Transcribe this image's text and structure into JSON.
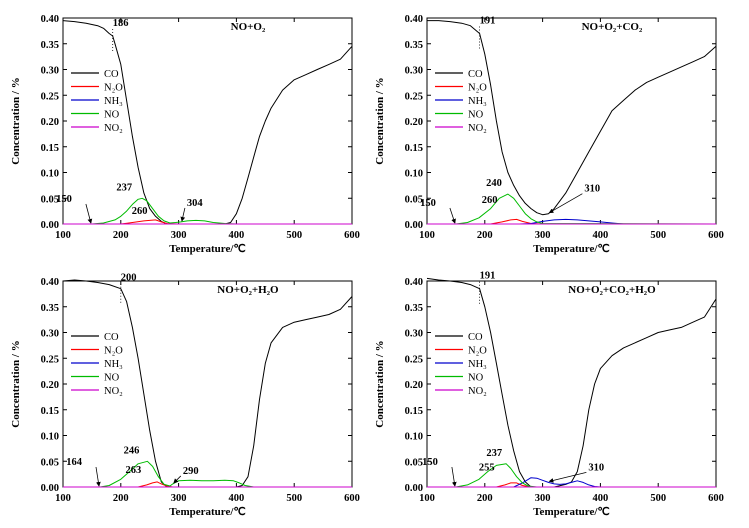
{
  "chart_data": [
    {
      "type": "line",
      "title": "NO+O₂",
      "xlabel": "Temperature/℃",
      "ylabel": "Concentration / %",
      "xlim": [
        100,
        600
      ],
      "ylim": [
        0,
        0.4
      ],
      "xticks": [
        "100",
        "200",
        "300",
        "400",
        "500",
        "600"
      ],
      "yticks": [
        "0.00",
        "0.05",
        "0.10",
        "0.15",
        "0.20",
        "0.25",
        "0.30",
        "0.35",
        "0.40"
      ],
      "legend_position": "left",
      "colors": {
        "CO": "#000000",
        "N2O": "#ff0000",
        "NH3": "#0000cc",
        "NO": "#00bb00",
        "NO2": "#cc00cc"
      },
      "series": [
        {
          "name": "CO",
          "x": [
            100,
            120,
            140,
            160,
            170,
            180,
            186,
            190,
            200,
            210,
            220,
            230,
            240,
            250,
            260,
            270,
            280,
            290,
            300,
            320,
            340,
            360,
            380,
            390,
            400,
            410,
            420,
            430,
            440,
            450,
            460,
            480,
            500,
            520,
            540,
            560,
            580,
            600
          ],
          "y": [
            0.395,
            0.393,
            0.39,
            0.385,
            0.38,
            0.37,
            0.365,
            0.35,
            0.31,
            0.24,
            0.17,
            0.11,
            0.06,
            0.03,
            0.015,
            0.005,
            0.0,
            0.0,
            0.0,
            0.0,
            0.0,
            0.0,
            0.0,
            0.003,
            0.02,
            0.05,
            0.09,
            0.13,
            0.17,
            0.2,
            0.225,
            0.26,
            0.28,
            0.29,
            0.3,
            0.31,
            0.32,
            0.345
          ]
        },
        {
          "name": "N₂O",
          "x": [
            100,
            200,
            220,
            240,
            260,
            270,
            280,
            300,
            600
          ],
          "y": [
            0,
            0,
            0.003,
            0.006,
            0.008,
            0.004,
            0.001,
            0,
            0
          ]
        },
        {
          "name": "NH₃",
          "x": [
            100,
            600
          ],
          "y": [
            0,
            0
          ]
        },
        {
          "name": "NO",
          "x": [
            100,
            150,
            170,
            190,
            200,
            210,
            220,
            230,
            237,
            245,
            255,
            265,
            275,
            285,
            295,
            304,
            315,
            330,
            345,
            360,
            380,
            400,
            600
          ],
          "y": [
            0,
            0,
            0.002,
            0.008,
            0.015,
            0.025,
            0.038,
            0.048,
            0.05,
            0.045,
            0.03,
            0.015,
            0.006,
            0.002,
            0.003,
            0.004,
            0.006,
            0.007,
            0.006,
            0.003,
            0.001,
            0,
            0
          ]
        },
        {
          "name": "NO₂",
          "x": [
            100,
            600
          ],
          "y": [
            0,
            0
          ]
        }
      ],
      "annotations": [
        {
          "text": "186",
          "x": 186,
          "y": 0.365
        },
        {
          "text": "150",
          "x": 150,
          "y": 0.0
        },
        {
          "text": "237",
          "x": 237,
          "y": 0.05
        },
        {
          "text": "260",
          "x": 260,
          "y": 0.008
        },
        {
          "text": "304",
          "x": 304,
          "y": 0.004
        }
      ]
    },
    {
      "type": "line",
      "title": "NO+O₂+CO₂",
      "xlabel": "Temperature/℃",
      "ylabel": "Concentration / %",
      "xlim": [
        100,
        600
      ],
      "ylim": [
        0,
        0.4
      ],
      "xticks": [
        "100",
        "200",
        "300",
        "400",
        "500",
        "600"
      ],
      "yticks": [
        "0.00",
        "0.05",
        "0.10",
        "0.15",
        "0.20",
        "0.25",
        "0.30",
        "0.35",
        "0.40"
      ],
      "legend_position": "left",
      "colors": {
        "CO": "#000000",
        "N2O": "#ff0000",
        "NH3": "#0000cc",
        "NO": "#00bb00",
        "NO2": "#cc00cc"
      },
      "series": [
        {
          "name": "CO",
          "x": [
            100,
            120,
            140,
            160,
            175,
            191,
            200,
            210,
            220,
            230,
            240,
            250,
            260,
            270,
            280,
            290,
            300,
            310,
            320,
            340,
            360,
            380,
            400,
            420,
            440,
            460,
            480,
            500,
            520,
            540,
            560,
            580,
            600
          ],
          "y": [
            0.395,
            0.395,
            0.393,
            0.39,
            0.385,
            0.37,
            0.33,
            0.27,
            0.2,
            0.14,
            0.1,
            0.075,
            0.055,
            0.04,
            0.03,
            0.022,
            0.018,
            0.02,
            0.03,
            0.06,
            0.1,
            0.14,
            0.18,
            0.22,
            0.24,
            0.26,
            0.275,
            0.285,
            0.295,
            0.305,
            0.315,
            0.325,
            0.345
          ]
        },
        {
          "name": "N₂O",
          "x": [
            100,
            210,
            230,
            245,
            255,
            265,
            280,
            300,
            600
          ],
          "y": [
            0,
            0,
            0.004,
            0.008,
            0.009,
            0.005,
            0.001,
            0,
            0
          ]
        },
        {
          "name": "NH₃",
          "x": [
            100,
            260,
            280,
            300,
            320,
            340,
            360,
            380,
            400,
            420,
            440,
            600
          ],
          "y": [
            0,
            0,
            0.001,
            0.005,
            0.008,
            0.009,
            0.008,
            0.006,
            0.004,
            0.002,
            0.0,
            0
          ]
        },
        {
          "name": "NO",
          "x": [
            100,
            150,
            170,
            190,
            210,
            225,
            240,
            250,
            260,
            270,
            280,
            290,
            300,
            600
          ],
          "y": [
            0,
            0,
            0.003,
            0.012,
            0.03,
            0.05,
            0.058,
            0.05,
            0.035,
            0.02,
            0.01,
            0.004,
            0.001,
            0
          ]
        },
        {
          "name": "NO₂",
          "x": [
            100,
            600
          ],
          "y": [
            0,
            0
          ]
        }
      ],
      "annotations": [
        {
          "text": "191",
          "x": 191,
          "y": 0.37
        },
        {
          "text": "150",
          "x": 150,
          "y": 0.0
        },
        {
          "text": "260",
          "x": 260,
          "y": 0.035
        },
        {
          "text": "240",
          "x": 240,
          "y": 0.058
        },
        {
          "text": "310",
          "x": 310,
          "y": 0.02
        }
      ]
    },
    {
      "type": "line",
      "title": "NO+O₂+H₂O",
      "xlabel": "Temperature/℃",
      "ylabel": "Concentration / %",
      "xlim": [
        100,
        600
      ],
      "ylim": [
        0,
        0.4
      ],
      "xticks": [
        "100",
        "200",
        "300",
        "400",
        "500",
        "600"
      ],
      "yticks": [
        "0.00",
        "0.05",
        "0.10",
        "0.15",
        "0.20",
        "0.25",
        "0.30",
        "0.35",
        "0.40"
      ],
      "legend_position": "left",
      "colors": {
        "CO": "#000000",
        "N2O": "#ff0000",
        "NH3": "#0000cc",
        "NO": "#00bb00",
        "NO2": "#cc00cc"
      },
      "series": [
        {
          "name": "CO",
          "x": [
            100,
            120,
            140,
            160,
            180,
            200,
            210,
            220,
            230,
            240,
            250,
            260,
            270,
            280,
            290,
            300,
            320,
            340,
            360,
            380,
            400,
            410,
            420,
            430,
            440,
            450,
            460,
            480,
            500,
            520,
            540,
            560,
            580,
            600
          ],
          "y": [
            0.4,
            0.402,
            0.4,
            0.397,
            0.393,
            0.385,
            0.36,
            0.31,
            0.25,
            0.18,
            0.11,
            0.05,
            0.01,
            0.0,
            0.0,
            0.0,
            0.0,
            0.0,
            0.0,
            0.0,
            0.0,
            0.003,
            0.02,
            0.08,
            0.17,
            0.24,
            0.28,
            0.31,
            0.32,
            0.325,
            0.33,
            0.335,
            0.345,
            0.37
          ]
        },
        {
          "name": "N₂O",
          "x": [
            100,
            230,
            245,
            255,
            263,
            270,
            280,
            290,
            600
          ],
          "y": [
            0,
            0,
            0.004,
            0.008,
            0.01,
            0.006,
            0.002,
            0,
            0
          ]
        },
        {
          "name": "NH₃",
          "x": [
            100,
            600
          ],
          "y": [
            0,
            0
          ]
        },
        {
          "name": "NO",
          "x": [
            100,
            164,
            180,
            200,
            215,
            230,
            246,
            255,
            265,
            275,
            285,
            290,
            300,
            320,
            340,
            360,
            380,
            395,
            405,
            415,
            430,
            600
          ],
          "y": [
            0,
            0,
            0.003,
            0.015,
            0.03,
            0.045,
            0.05,
            0.04,
            0.02,
            0.005,
            0.002,
            0.006,
            0.012,
            0.013,
            0.012,
            0.012,
            0.013,
            0.012,
            0.008,
            0.003,
            0.0,
            0
          ]
        },
        {
          "name": "NO₂",
          "x": [
            100,
            600
          ],
          "y": [
            0,
            0
          ]
        }
      ],
      "annotations": [
        {
          "text": "200",
          "x": 200,
          "y": 0.385
        },
        {
          "text": "164",
          "x": 164,
          "y": 0.0
        },
        {
          "text": "246",
          "x": 246,
          "y": 0.05
        },
        {
          "text": "263",
          "x": 263,
          "y": 0.01
        },
        {
          "text": "290",
          "x": 290,
          "y": 0.006
        }
      ]
    },
    {
      "type": "line",
      "title": "NO+O₂+CO₂+H₂O",
      "xlabel": "Temperature/℃",
      "ylabel": "Concentration / %",
      "xlim": [
        100,
        600
      ],
      "ylim": [
        0,
        0.4
      ],
      "xticks": [
        "100",
        "200",
        "300",
        "400",
        "500",
        "600"
      ],
      "yticks": [
        "0.00",
        "0.05",
        "0.10",
        "0.15",
        "0.20",
        "0.25",
        "0.30",
        "0.35",
        "0.40"
      ],
      "legend_position": "left",
      "colors": {
        "CO": "#000000",
        "N2O": "#ff0000",
        "NH3": "#0000cc",
        "NO": "#00bb00",
        "NO2": "#cc00cc"
      },
      "series": [
        {
          "name": "CO",
          "x": [
            100,
            120,
            140,
            160,
            175,
            191,
            200,
            210,
            220,
            230,
            240,
            250,
            260,
            270,
            280,
            290,
            300,
            320,
            340,
            350,
            360,
            370,
            380,
            390,
            400,
            420,
            440,
            460,
            480,
            500,
            520,
            540,
            560,
            580,
            600
          ],
          "y": [
            0.405,
            0.402,
            0.4,
            0.397,
            0.393,
            0.385,
            0.35,
            0.3,
            0.24,
            0.18,
            0.12,
            0.07,
            0.03,
            0.01,
            0.0,
            0.0,
            0.0,
            0.0,
            0.005,
            0.01,
            0.03,
            0.08,
            0.15,
            0.2,
            0.23,
            0.255,
            0.27,
            0.28,
            0.29,
            0.3,
            0.305,
            0.31,
            0.32,
            0.33,
            0.365
          ]
        },
        {
          "name": "N₂O",
          "x": [
            100,
            220,
            235,
            245,
            255,
            265,
            280,
            600
          ],
          "y": [
            0,
            0,
            0.004,
            0.008,
            0.008,
            0.003,
            0,
            0
          ]
        },
        {
          "name": "NH₃",
          "x": [
            100,
            250,
            265,
            280,
            290,
            300,
            310,
            320,
            330,
            340,
            350,
            360,
            370,
            380,
            390,
            400,
            600
          ],
          "y": [
            0,
            0,
            0.008,
            0.018,
            0.017,
            0.013,
            0.009,
            0.006,
            0.005,
            0.006,
            0.009,
            0.012,
            0.009,
            0.004,
            0.001,
            0,
            0
          ]
        },
        {
          "name": "NO",
          "x": [
            100,
            150,
            170,
            190,
            205,
            220,
            237,
            245,
            255,
            265,
            275,
            290,
            600
          ],
          "y": [
            0,
            0,
            0.004,
            0.015,
            0.03,
            0.042,
            0.045,
            0.036,
            0.02,
            0.008,
            0.002,
            0,
            0
          ]
        },
        {
          "name": "NO₂",
          "x": [
            100,
            600
          ],
          "y": [
            0,
            0
          ]
        }
      ],
      "annotations": [
        {
          "text": "191",
          "x": 191,
          "y": 0.385
        },
        {
          "text": "150",
          "x": 150,
          "y": 0.0
        },
        {
          "text": "255",
          "x": 255,
          "y": 0.02
        },
        {
          "text": "237",
          "x": 237,
          "y": 0.045
        },
        {
          "text": "310",
          "x": 310,
          "y": 0.009
        }
      ]
    }
  ]
}
